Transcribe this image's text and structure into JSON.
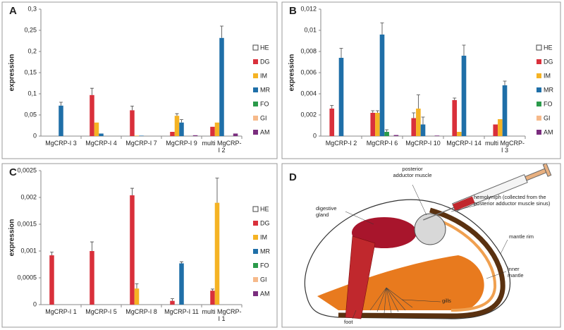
{
  "chart_data": [
    {
      "type": "bar",
      "label": "A",
      "ylabel": "expression",
      "categories": [
        "MgCRP-I 3",
        "MgCRP-I 4",
        "MgCRP-I 7",
        "MgCRP-I 9",
        "multi MgCRP-I 2"
      ],
      "ylim": [
        0,
        0.3
      ],
      "yticks": [
        0,
        {
          "value": 0.05,
          "label": "0,05"
        },
        {
          "value": 0.1,
          "label": "0,1"
        },
        {
          "value": 0.15,
          "label": "0,15"
        },
        {
          "value": 0.2,
          "label": "0,2"
        },
        {
          "value": 0.25,
          "label": "0,25"
        },
        {
          "value": 0.3,
          "label": "0,3"
        }
      ],
      "series": [
        {
          "name": "HE",
          "color": "#ffffff",
          "values": [
            0,
            0,
            0,
            0,
            0
          ],
          "errors": [
            null,
            null,
            null,
            null,
            null
          ]
        },
        {
          "name": "DG",
          "color": "#d9303b",
          "values": [
            0,
            0.097,
            0.061,
            0.01,
            0.022
          ],
          "errors": [
            null,
            0.016,
            0.01,
            null,
            null
          ]
        },
        {
          "name": "IM",
          "color": "#f5b324",
          "values": [
            0,
            0.032,
            0.001,
            0.048,
            0.032
          ],
          "errors": [
            null,
            null,
            null,
            0.005,
            null
          ]
        },
        {
          "name": "MR",
          "color": "#1f6fa8",
          "values": [
            0.072,
            0.006,
            0.001,
            0.032,
            0.232
          ],
          "errors": [
            0.008,
            null,
            null,
            0.007,
            0.028
          ]
        },
        {
          "name": "FO",
          "color": "#2a9a4a",
          "values": [
            0,
            0,
            0,
            0,
            0
          ],
          "errors": [
            null,
            null,
            null,
            null,
            null
          ]
        },
        {
          "name": "GI",
          "color": "#f6b98a",
          "values": [
            0,
            0,
            0,
            0,
            0
          ],
          "errors": [
            null,
            null,
            null,
            null,
            null
          ]
        },
        {
          "name": "AM",
          "color": "#7a2d7e",
          "values": [
            0,
            0,
            0,
            0.002,
            0.006
          ],
          "errors": [
            null,
            null,
            null,
            null,
            null
          ]
        }
      ]
    },
    {
      "type": "bar",
      "label": "B",
      "ylabel": "expression",
      "categories": [
        "MgCRP-I 2",
        "MgCRP-I 6",
        "MgCRP-I 10",
        "MgCRP-I 14",
        "multi MgCRP-I 3"
      ],
      "ylim": [
        0,
        0.012
      ],
      "yticks": [
        0,
        {
          "value": 0.002,
          "label": "0,002"
        },
        {
          "value": 0.004,
          "label": "0,004"
        },
        {
          "value": 0.006,
          "label": "0,006"
        },
        {
          "value": 0.008,
          "label": "0,008"
        },
        {
          "value": 0.01,
          "label": "0,01"
        },
        {
          "value": 0.012,
          "label": "0,012"
        }
      ],
      "series": [
        {
          "name": "HE",
          "color": "#ffffff",
          "values": [
            0,
            0,
            0,
            0,
            0
          ],
          "errors": [
            null,
            null,
            null,
            null,
            null
          ]
        },
        {
          "name": "DG",
          "color": "#d9303b",
          "values": [
            0.0026,
            0.0022,
            0.0017,
            0.0034,
            0.0011
          ],
          "errors": [
            0.0003,
            0.0002,
            0.0005,
            0.0002,
            null
          ]
        },
        {
          "name": "IM",
          "color": "#f5b324",
          "values": [
            0,
            0.0022,
            0.0026,
            0.0004,
            0.0016
          ],
          "errors": [
            null,
            0.0002,
            0.0013,
            null,
            null
          ]
        },
        {
          "name": "MR",
          "color": "#1f6fa8",
          "values": [
            0.0074,
            0.0096,
            0.0011,
            0.0076,
            0.0048
          ],
          "errors": [
            0.0009,
            0.0011,
            0.0007,
            0.001,
            0.0004
          ]
        },
        {
          "name": "FO",
          "color": "#2a9a4a",
          "values": [
            0,
            0.0004,
            0,
            0,
            0
          ],
          "errors": [
            null,
            0.0002,
            null,
            null,
            null
          ]
        },
        {
          "name": "GI",
          "color": "#f6b98a",
          "values": [
            0,
            0,
            0,
            0,
            0
          ],
          "errors": [
            null,
            null,
            null,
            null,
            null
          ]
        },
        {
          "name": "AM",
          "color": "#7a2d7e",
          "values": [
            0,
            0.0001,
            5e-05,
            0,
            0
          ],
          "errors": [
            null,
            null,
            null,
            null,
            null
          ]
        }
      ]
    },
    {
      "type": "bar",
      "label": "C",
      "ylabel": "expression",
      "categories": [
        "MgCRP-I 1",
        "MgCRP-I 5",
        "MgCRP-I 8",
        "MgCRP-I 11",
        "multi MgCRP-I 1"
      ],
      "ylim": [
        0,
        0.0025
      ],
      "yticks": [
        0,
        {
          "value": 0.0005,
          "label": "0,0005"
        },
        {
          "value": 0.001,
          "label": "0,001"
        },
        {
          "value": 0.0015,
          "label": "0,0015"
        },
        {
          "value": 0.002,
          "label": "0,002"
        },
        {
          "value": 0.0025,
          "label": "0,0025"
        }
      ],
      "series": [
        {
          "name": "HE",
          "color": "#ffffff",
          "values": [
            0,
            0,
            0,
            0,
            0
          ],
          "errors": [
            null,
            null,
            null,
            null,
            null
          ]
        },
        {
          "name": "DG",
          "color": "#d9303b",
          "values": [
            0.00092,
            0.001,
            0.00204,
            7e-05,
            0.00026
          ],
          "errors": [
            6e-05,
            0.00017,
            0.00013,
            4e-05,
            3e-05
          ]
        },
        {
          "name": "IM",
          "color": "#f5b324",
          "values": [
            0,
            0,
            0.0003,
            0,
            0.0019
          ],
          "errors": [
            null,
            null,
            9e-05,
            null,
            0.00046
          ]
        },
        {
          "name": "MR",
          "color": "#1f6fa8",
          "values": [
            0,
            0,
            0,
            0.00077,
            0
          ],
          "errors": [
            null,
            null,
            null,
            3e-05,
            null
          ]
        },
        {
          "name": "FO",
          "color": "#2a9a4a",
          "values": [
            0,
            0,
            0,
            0,
            0
          ],
          "errors": [
            null,
            null,
            null,
            null,
            null
          ]
        },
        {
          "name": "GI",
          "color": "#f6b98a",
          "values": [
            0,
            0,
            0,
            0,
            0
          ],
          "errors": [
            null,
            null,
            null,
            null,
            null
          ]
        },
        {
          "name": "AM",
          "color": "#7a2d7e",
          "values": [
            0,
            0,
            0,
            0,
            0
          ],
          "errors": [
            null,
            null,
            null,
            null,
            null
          ]
        }
      ]
    }
  ],
  "diagram": {
    "label": "D",
    "labels": [
      "digestive gland",
      "posterior adductor muscle",
      "hemolymph (collected from the posterior adductor muscle sinus)",
      "mantle rim",
      "inner mantle",
      "gills",
      "foot"
    ]
  }
}
